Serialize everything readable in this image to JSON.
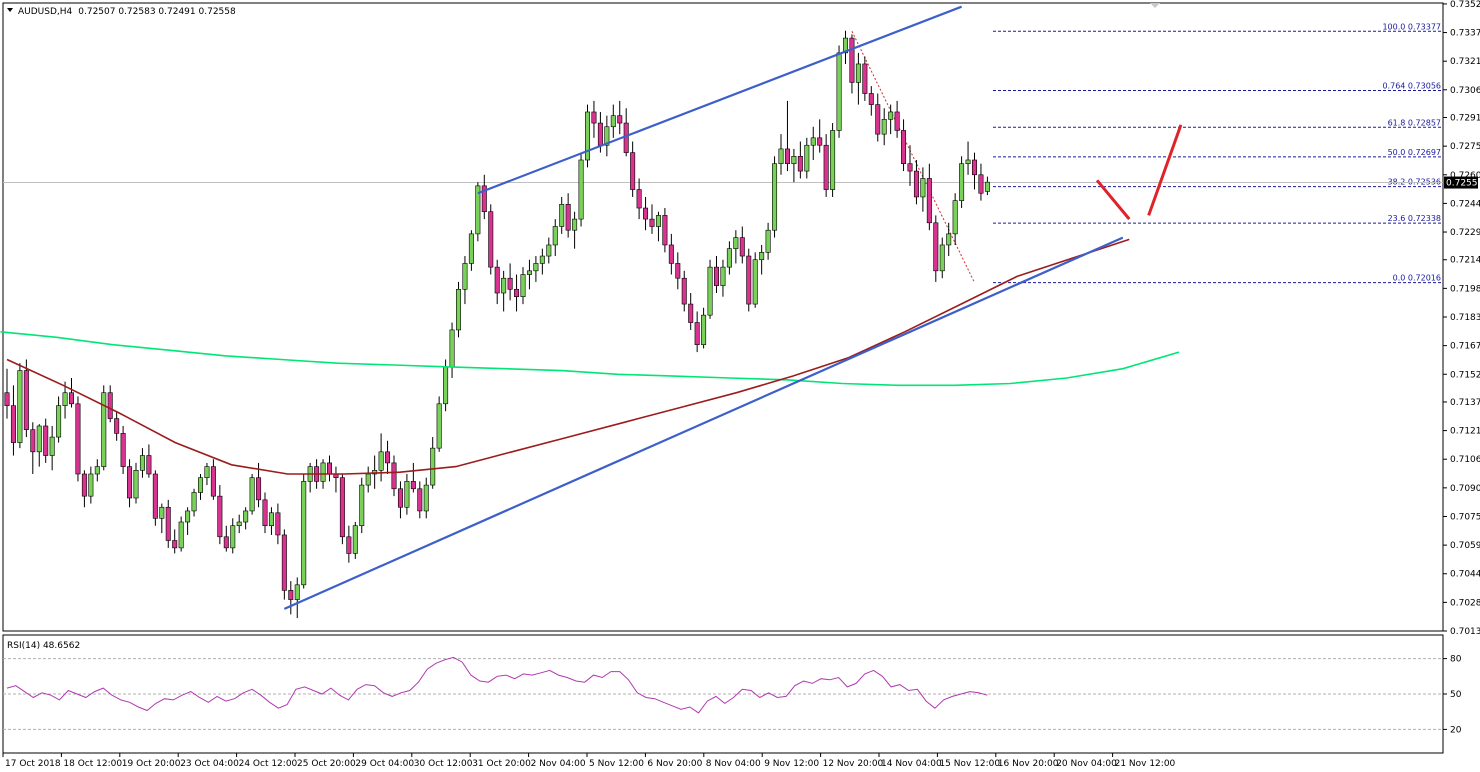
{
  "chart_data": {
    "type": "candlestick",
    "header": {
      "symbol": "AUDUSD,H4",
      "quotes": "0.72507 0.72583 0.72491 0.72558"
    },
    "current_price": "0.72558",
    "price_ticks": [
      "0.73525",
      "0.73370",
      "0.73215",
      "0.73060",
      "0.72910",
      "0.72755",
      "0.72600",
      "0.72445",
      "0.72290",
      "0.72140",
      "0.71985",
      "0.71830",
      "0.71675",
      "0.71520",
      "0.71370",
      "0.71215",
      "0.71060",
      "0.70905",
      "0.70750",
      "0.70595",
      "0.70440",
      "0.70285",
      "0.70130"
    ],
    "ylim": [
      0.7013,
      0.7353
    ],
    "time_labels": [
      "17 Oct 2018",
      "18 Oct 12:00",
      "19 Oct 20:00",
      "23 Oct 04:00",
      "24 Oct 12:00",
      "25 Oct 20:00",
      "29 Oct 04:00",
      "30 Oct 12:00",
      "31 Oct 20:00",
      "2 Nov 04:00",
      "5 Nov 12:00",
      "6 Nov 20:00",
      "8 Nov 04:00",
      "9 Nov 12:00",
      "12 Nov 20:00",
      "14 Nov 04:00",
      "15 Nov 12:00",
      "16 Nov 20:00",
      "20 Nov 04:00",
      "21 Nov 12:00"
    ],
    "candles": [
      [
        0.7142,
        0.7155,
        0.7128,
        0.7135
      ],
      [
        0.7135,
        0.7146,
        0.7108,
        0.7115
      ],
      [
        0.7115,
        0.7158,
        0.7112,
        0.7154
      ],
      [
        0.7154,
        0.716,
        0.7118,
        0.7122
      ],
      [
        0.7122,
        0.7126,
        0.7098,
        0.711
      ],
      [
        0.711,
        0.7125,
        0.7102,
        0.7124
      ],
      [
        0.7124,
        0.7128,
        0.7104,
        0.7108
      ],
      [
        0.7108,
        0.7124,
        0.71,
        0.7118
      ],
      [
        0.7118,
        0.714,
        0.7115,
        0.7135
      ],
      [
        0.7135,
        0.7148,
        0.7128,
        0.7142
      ],
      [
        0.7142,
        0.715,
        0.7134,
        0.7136
      ],
      [
        0.7136,
        0.714,
        0.7094,
        0.7098
      ],
      [
        0.7098,
        0.71,
        0.708,
        0.7086
      ],
      [
        0.7086,
        0.7102,
        0.7082,
        0.7098
      ],
      [
        0.7098,
        0.7106,
        0.7094,
        0.7102
      ],
      [
        0.7102,
        0.7146,
        0.71,
        0.7142
      ],
      [
        0.7142,
        0.7146,
        0.7126,
        0.7128
      ],
      [
        0.7128,
        0.7132,
        0.7116,
        0.712
      ],
      [
        0.712,
        0.7124,
        0.7098,
        0.7102
      ],
      [
        0.7102,
        0.7106,
        0.708,
        0.7085
      ],
      [
        0.7085,
        0.7104,
        0.7082,
        0.71
      ],
      [
        0.71,
        0.7112,
        0.7096,
        0.7108
      ],
      [
        0.7108,
        0.7114,
        0.7096,
        0.7098
      ],
      [
        0.7098,
        0.71,
        0.707,
        0.7074
      ],
      [
        0.7074,
        0.7082,
        0.7066,
        0.708
      ],
      [
        0.708,
        0.7084,
        0.7058,
        0.7062
      ],
      [
        0.7062,
        0.7068,
        0.7055,
        0.7058
      ],
      [
        0.7058,
        0.7075,
        0.7056,
        0.7072
      ],
      [
        0.7072,
        0.708,
        0.7065,
        0.7078
      ],
      [
        0.7078,
        0.709,
        0.7075,
        0.7088
      ],
      [
        0.7088,
        0.7098,
        0.7084,
        0.7096
      ],
      [
        0.7096,
        0.7104,
        0.7092,
        0.7102
      ],
      [
        0.7102,
        0.7106,
        0.7084,
        0.7086
      ],
      [
        0.7086,
        0.7092,
        0.706,
        0.7064
      ],
      [
        0.7064,
        0.707,
        0.7056,
        0.7058
      ],
      [
        0.7058,
        0.7074,
        0.7055,
        0.707
      ],
      [
        0.707,
        0.7076,
        0.7066,
        0.7072
      ],
      [
        0.7072,
        0.708,
        0.7068,
        0.7078
      ],
      [
        0.7078,
        0.7098,
        0.7076,
        0.7096
      ],
      [
        0.7096,
        0.7104,
        0.708,
        0.7084
      ],
      [
        0.7084,
        0.7088,
        0.7066,
        0.707
      ],
      [
        0.707,
        0.708,
        0.7065,
        0.7077
      ],
      [
        0.7077,
        0.7082,
        0.706,
        0.7065
      ],
      [
        0.7065,
        0.7068,
        0.703,
        0.7035
      ],
      [
        0.7035,
        0.704,
        0.7022,
        0.703
      ],
      [
        0.703,
        0.7042,
        0.702,
        0.7038
      ],
      [
        0.7038,
        0.7098,
        0.7036,
        0.7094
      ],
      [
        0.7094,
        0.7104,
        0.7088,
        0.7102
      ],
      [
        0.7102,
        0.7106,
        0.709,
        0.7094
      ],
      [
        0.7094,
        0.7106,
        0.709,
        0.7104
      ],
      [
        0.7104,
        0.7108,
        0.7094,
        0.7098
      ],
      [
        0.7098,
        0.7102,
        0.7088,
        0.7096
      ],
      [
        0.7096,
        0.7098,
        0.706,
        0.7064
      ],
      [
        0.7064,
        0.707,
        0.705,
        0.7055
      ],
      [
        0.7055,
        0.7072,
        0.7052,
        0.707
      ],
      [
        0.707,
        0.7096,
        0.7066,
        0.7092
      ],
      [
        0.7092,
        0.7102,
        0.7088,
        0.7098
      ],
      [
        0.7098,
        0.7108,
        0.709,
        0.71
      ],
      [
        0.71,
        0.712,
        0.7094,
        0.711
      ],
      [
        0.711,
        0.7116,
        0.7098,
        0.7104
      ],
      [
        0.7104,
        0.7108,
        0.7086,
        0.709
      ],
      [
        0.709,
        0.7094,
        0.7074,
        0.708
      ],
      [
        0.708,
        0.7098,
        0.7076,
        0.7094
      ],
      [
        0.7094,
        0.7104,
        0.7088,
        0.709
      ],
      [
        0.709,
        0.7094,
        0.7074,
        0.7078
      ],
      [
        0.7078,
        0.7096,
        0.7074,
        0.7092
      ],
      [
        0.7092,
        0.7118,
        0.709,
        0.7112
      ],
      [
        0.7112,
        0.714,
        0.711,
        0.7136
      ],
      [
        0.7136,
        0.716,
        0.7132,
        0.7156
      ],
      [
        0.7156,
        0.718,
        0.715,
        0.7176
      ],
      [
        0.7176,
        0.7202,
        0.7172,
        0.7198
      ],
      [
        0.7198,
        0.7216,
        0.719,
        0.7212
      ],
      [
        0.7212,
        0.723,
        0.7208,
        0.7228
      ],
      [
        0.7228,
        0.7256,
        0.7224,
        0.7254
      ],
      [
        0.7254,
        0.726,
        0.7236,
        0.724
      ],
      [
        0.724,
        0.7244,
        0.7206,
        0.721
      ],
      [
        0.721,
        0.7214,
        0.719,
        0.7196
      ],
      [
        0.7196,
        0.7208,
        0.7186,
        0.7204
      ],
      [
        0.7204,
        0.7212,
        0.7192,
        0.7198
      ],
      [
        0.7198,
        0.7206,
        0.7186,
        0.7194
      ],
      [
        0.7194,
        0.721,
        0.719,
        0.7206
      ],
      [
        0.7206,
        0.7214,
        0.7198,
        0.7208
      ],
      [
        0.7208,
        0.7216,
        0.7202,
        0.7212
      ],
      [
        0.7212,
        0.722,
        0.7206,
        0.7216
      ],
      [
        0.7216,
        0.7226,
        0.7212,
        0.7222
      ],
      [
        0.7222,
        0.7236,
        0.7216,
        0.7232
      ],
      [
        0.7232,
        0.7248,
        0.7228,
        0.7244
      ],
      [
        0.7244,
        0.725,
        0.7226,
        0.723
      ],
      [
        0.723,
        0.724,
        0.722,
        0.7236
      ],
      [
        0.7236,
        0.7272,
        0.7232,
        0.7268
      ],
      [
        0.7268,
        0.7298,
        0.7264,
        0.7294
      ],
      [
        0.7294,
        0.73,
        0.728,
        0.7288
      ],
      [
        0.7288,
        0.7294,
        0.7272,
        0.7276
      ],
      [
        0.7276,
        0.7292,
        0.727,
        0.7286
      ],
      [
        0.7286,
        0.7298,
        0.728,
        0.7292
      ],
      [
        0.7292,
        0.73,
        0.7282,
        0.7288
      ],
      [
        0.7288,
        0.7296,
        0.727,
        0.7272
      ],
      [
        0.7272,
        0.7278,
        0.7248,
        0.7252
      ],
      [
        0.7252,
        0.7258,
        0.7236,
        0.7242
      ],
      [
        0.7242,
        0.7248,
        0.723,
        0.7236
      ],
      [
        0.7236,
        0.7244,
        0.7228,
        0.7232
      ],
      [
        0.7232,
        0.724,
        0.7224,
        0.7238
      ],
      [
        0.7238,
        0.7242,
        0.7218,
        0.7222
      ],
      [
        0.7222,
        0.7228,
        0.7206,
        0.7212
      ],
      [
        0.7212,
        0.7218,
        0.7198,
        0.7204
      ],
      [
        0.7204,
        0.7208,
        0.7186,
        0.719
      ],
      [
        0.719,
        0.7196,
        0.7176,
        0.718
      ],
      [
        0.718,
        0.7186,
        0.7164,
        0.7168
      ],
      [
        0.7168,
        0.7188,
        0.7166,
        0.7184
      ],
      [
        0.7184,
        0.7214,
        0.7182,
        0.721
      ],
      [
        0.721,
        0.7216,
        0.7196,
        0.72
      ],
      [
        0.72,
        0.7214,
        0.7194,
        0.721
      ],
      [
        0.721,
        0.7224,
        0.7206,
        0.722
      ],
      [
        0.722,
        0.723,
        0.7212,
        0.7226
      ],
      [
        0.7226,
        0.7232,
        0.7212,
        0.7216
      ],
      [
        0.7216,
        0.722,
        0.7186,
        0.719
      ],
      [
        0.719,
        0.7218,
        0.7188,
        0.7214
      ],
      [
        0.7214,
        0.7222,
        0.7206,
        0.7218
      ],
      [
        0.7218,
        0.7234,
        0.7214,
        0.723
      ],
      [
        0.723,
        0.727,
        0.7226,
        0.7266
      ],
      [
        0.7266,
        0.7282,
        0.726,
        0.7274
      ],
      [
        0.7274,
        0.73,
        0.7262,
        0.7266
      ],
      [
        0.7266,
        0.7274,
        0.7256,
        0.727
      ],
      [
        0.727,
        0.7278,
        0.7258,
        0.7262
      ],
      [
        0.7262,
        0.728,
        0.7258,
        0.7276
      ],
      [
        0.7276,
        0.7286,
        0.7268,
        0.728
      ],
      [
        0.728,
        0.729,
        0.7272,
        0.7276
      ],
      [
        0.7276,
        0.7282,
        0.7248,
        0.7252
      ],
      [
        0.7252,
        0.7288,
        0.7248,
        0.7284
      ],
      [
        0.7284,
        0.733,
        0.728,
        0.7326
      ],
      [
        0.7326,
        0.7338,
        0.732,
        0.7334
      ],
      [
        0.7334,
        0.7336,
        0.7304,
        0.731
      ],
      [
        0.731,
        0.7326,
        0.7298,
        0.732
      ],
      [
        0.732,
        0.7324,
        0.73,
        0.7304
      ],
      [
        0.7304,
        0.7308,
        0.7292,
        0.7298
      ],
      [
        0.7298,
        0.7304,
        0.7278,
        0.7282
      ],
      [
        0.7282,
        0.7296,
        0.7276,
        0.729
      ],
      [
        0.729,
        0.7298,
        0.7282,
        0.7294
      ],
      [
        0.7294,
        0.73,
        0.728,
        0.7284
      ],
      [
        0.7284,
        0.729,
        0.7262,
        0.7266
      ],
      [
        0.7266,
        0.7276,
        0.7254,
        0.7262
      ],
      [
        0.7262,
        0.7268,
        0.7244,
        0.7248
      ],
      [
        0.7248,
        0.7264,
        0.724,
        0.7258
      ],
      [
        0.7258,
        0.7266,
        0.723,
        0.7234
      ],
      [
        0.7234,
        0.7238,
        0.7202,
        0.7208
      ],
      [
        0.7208,
        0.7226,
        0.7204,
        0.7222
      ],
      [
        0.7222,
        0.7234,
        0.7216,
        0.7228
      ],
      [
        0.7228,
        0.725,
        0.7222,
        0.7246
      ],
      [
        0.7246,
        0.727,
        0.7242,
        0.7266
      ],
      [
        0.7266,
        0.7278,
        0.726,
        0.7268
      ],
      [
        0.7268,
        0.7272,
        0.7252,
        0.726
      ],
      [
        0.726,
        0.7266,
        0.7246,
        0.725
      ],
      [
        0.7251,
        0.7259,
        0.7249,
        0.7256
      ]
    ],
    "series": [
      {
        "name": "",
        "color": "#00e676",
        "values": [
          0.7175,
          0.7172,
          0.7168,
          0.7165,
          0.7162,
          0.716,
          0.7158,
          0.7157,
          0.7156,
          0.7155,
          0.7154,
          0.7152,
          0.7151,
          0.715,
          0.7149,
          0.7147,
          0.7146,
          0.7146,
          0.7147,
          0.715,
          0.7155,
          0.7164
        ]
      },
      {
        "name": "",
        "color": "#9b1c1c",
        "values": [
          0.716,
          0.7146,
          0.7131,
          0.7115,
          0.7103,
          0.7098,
          0.7098,
          0.7099,
          0.7102,
          0.711,
          0.7118,
          0.7126,
          0.7134,
          0.7142,
          0.7151,
          0.7161,
          0.7175,
          0.719,
          0.7205,
          0.7215,
          0.7225
        ]
      }
    ],
    "trendlines": [
      {
        "name": "",
        "color": "#3d5fc9",
        "from": [
          43,
          0.7025
        ],
        "to": [
          173,
          0.7226
        ]
      },
      {
        "name": "",
        "color": "#3d5fc9",
        "from": [
          73,
          0.725
        ],
        "to": [
          148,
          0.7351
        ]
      }
    ],
    "projection": {
      "color": "#e0222a",
      "points": [
        [
          169,
          0.7257
        ],
        [
          174,
          0.7236
        ],
        [
          177,
          0.7238
        ],
        [
          182,
          0.7287
        ]
      ]
    },
    "fibonacci": {
      "high": 0.73377,
      "low": 0.72016,
      "levels": [
        {
          "label": "100.0 0.73377",
          "price": 0.73377
        },
        {
          "label": "0.764 0.73056",
          "price": 0.73056
        },
        {
          "label": "61.8 0.72857",
          "price": 0.72857
        },
        {
          "label": "50.0 0.72697",
          "price": 0.72697
        },
        {
          "label": "38.2 0.72536",
          "price": 0.72536
        },
        {
          "label": "23.6 0.72338",
          "price": 0.72338
        },
        {
          "label": "0.0 0.72016",
          "price": 0.72016
        }
      ]
    },
    "rsi": {
      "label": "RSI(14) 48.6562",
      "ticks": [
        "80",
        "50",
        "20"
      ],
      "tick_values": [
        80,
        50,
        20
      ],
      "ylim": [
        0,
        100
      ],
      "color": "#b03ab0",
      "values": [
        55,
        57,
        52,
        47,
        51,
        49,
        45,
        53,
        50,
        47,
        52,
        55,
        49,
        45,
        43,
        39,
        36,
        42,
        46,
        45,
        49,
        52,
        47,
        43,
        48,
        44,
        46,
        51,
        54,
        49,
        43,
        38,
        41,
        54,
        56,
        53,
        50,
        55,
        49,
        45,
        54,
        58,
        57,
        51,
        48,
        51,
        53,
        60,
        71,
        76,
        79,
        81,
        77,
        66,
        61,
        60,
        65,
        66,
        63,
        67,
        66,
        68,
        70,
        66,
        64,
        61,
        60,
        66,
        64,
        69,
        69,
        62,
        51,
        47,
        46,
        43,
        40,
        37,
        39,
        34,
        44,
        48,
        42,
        47,
        54,
        53,
        47,
        51,
        47,
        48,
        57,
        61,
        59,
        63,
        62,
        64,
        56,
        59,
        67,
        70,
        65,
        56,
        58,
        53,
        54,
        44,
        38,
        45,
        48,
        50,
        52,
        51,
        49
      ]
    }
  }
}
